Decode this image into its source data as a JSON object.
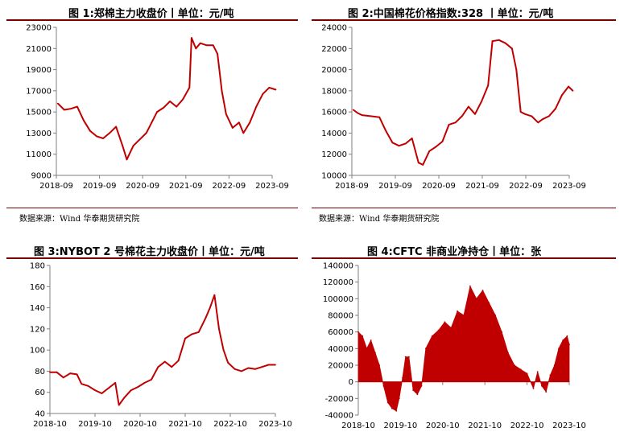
{
  "charts": [
    {
      "title": "图 1:郑棉主力收盘价丨单位：元/吨",
      "source": "数据来源：Wind  华泰期货研究院"
    },
    {
      "title": "图 2:中国棉花价格指数:328 丨单位：元/吨",
      "source": "数据来源：Wind  华泰期货研究院"
    },
    {
      "title": "图 3:NYBOT 2 号棉花主力收盘价丨单位：元/吨",
      "source": ""
    },
    {
      "title": "图 4:CFTC 非商业净持仓丨单位：张",
      "source": ""
    }
  ],
  "colors": {
    "series": "#c00000",
    "rule": "#7a0000"
  },
  "chart_data": [
    {
      "type": "line",
      "title": "图 1:郑棉主力收盘价丨单位：元/吨",
      "x_ticks": [
        "2018-09",
        "2019-09",
        "2020-09",
        "2021-09",
        "2022-09",
        "2023-09"
      ],
      "y_ticks": [
        9000,
        11000,
        13000,
        15000,
        17000,
        19000,
        21000,
        23000
      ],
      "ylim": [
        9000,
        23000
      ],
      "x": [
        2018.7,
        2018.85,
        2019.0,
        2019.15,
        2019.3,
        2019.45,
        2019.6,
        2019.75,
        2019.9,
        2020.05,
        2020.2,
        2020.3,
        2020.45,
        2020.6,
        2020.75,
        2020.9,
        2021.0,
        2021.15,
        2021.3,
        2021.45,
        2021.6,
        2021.75,
        2021.8,
        2021.9,
        2022.0,
        2022.15,
        2022.3,
        2022.4,
        2022.5,
        2022.6,
        2022.75,
        2022.9,
        2023.0,
        2023.15,
        2023.3,
        2023.45,
        2023.6,
        2023.75
      ],
      "values": [
        15800,
        15200,
        15300,
        15500,
        14200,
        13200,
        12700,
        12500,
        13000,
        13600,
        11800,
        10500,
        11800,
        12400,
        13000,
        14200,
        15000,
        15400,
        16000,
        15500,
        16200,
        17300,
        22000,
        21000,
        21500,
        21300,
        21300,
        20500,
        17000,
        14800,
        13500,
        14000,
        13000,
        14000,
        15500,
        16700,
        17300,
        17100
      ],
      "xlabel": "",
      "ylabel": "",
      "grid": false,
      "legend": "none"
    },
    {
      "type": "line",
      "title": "图 2:中国棉花价格指数:328 丨单位：元/吨",
      "x_ticks": [
        "2018-09",
        "2019-09",
        "2020-09",
        "2021-09",
        "2022-09",
        "2023-09"
      ],
      "y_ticks": [
        10000,
        12000,
        14000,
        16000,
        18000,
        20000,
        22000,
        24000
      ],
      "ylim": [
        10000,
        24000
      ],
      "x": [
        2018.7,
        2018.8,
        2018.9,
        2019.1,
        2019.3,
        2019.45,
        2019.6,
        2019.75,
        2019.9,
        2020.05,
        2020.2,
        2020.3,
        2020.45,
        2020.6,
        2020.75,
        2020.9,
        2021.05,
        2021.2,
        2021.35,
        2021.5,
        2021.65,
        2021.8,
        2021.9,
        2022.05,
        2022.2,
        2022.35,
        2022.45,
        2022.55,
        2022.65,
        2022.8,
        2022.95,
        2023.05,
        2023.2,
        2023.35,
        2023.5,
        2023.65,
        2023.75
      ],
      "values": [
        16200,
        15900,
        15700,
        15600,
        15500,
        14200,
        13100,
        12800,
        13000,
        13500,
        11200,
        11000,
        12300,
        12700,
        13200,
        14800,
        15000,
        15600,
        16500,
        15800,
        17000,
        18500,
        22700,
        22800,
        22500,
        22000,
        20000,
        16000,
        15800,
        15600,
        15000,
        15300,
        15600,
        16300,
        17600,
        18400,
        18000
      ],
      "xlabel": "",
      "ylabel": "",
      "grid": false,
      "legend": "none"
    },
    {
      "type": "line",
      "title": "图 3:NYBOT 2 号棉花主力收盘价丨单位：元/吨",
      "x_ticks": [
        "2018-10",
        "2019-10",
        "2020-10",
        "2021-10",
        "2022-10",
        "2023-10"
      ],
      "y_ticks": [
        40,
        60,
        80,
        100,
        120,
        140,
        160,
        180
      ],
      "ylim": [
        40,
        180
      ],
      "x": [
        2018.75,
        2018.9,
        2019.05,
        2019.2,
        2019.35,
        2019.45,
        2019.6,
        2019.75,
        2019.9,
        2020.05,
        2020.2,
        2020.28,
        2020.4,
        2020.55,
        2020.7,
        2020.85,
        2021.0,
        2021.15,
        2021.3,
        2021.45,
        2021.6,
        2021.75,
        2021.9,
        2022.05,
        2022.2,
        2022.3,
        2022.4,
        2022.5,
        2022.6,
        2022.7,
        2022.85,
        2023.0,
        2023.15,
        2023.3,
        2023.45,
        2023.6,
        2023.75
      ],
      "values": [
        79,
        79,
        74,
        78,
        77,
        68,
        66,
        62,
        59,
        64,
        69,
        48,
        55,
        62,
        65,
        69,
        72,
        84,
        89,
        84,
        90,
        111,
        115,
        117,
        130,
        140,
        152,
        120,
        100,
        88,
        82,
        80,
        83,
        82,
        84,
        86,
        86
      ],
      "xlabel": "",
      "ylabel": "",
      "grid": false,
      "legend": "none"
    },
    {
      "type": "area",
      "title": "图 4:CFTC 非商业净持仓丨单位：张",
      "x_ticks": [
        "2018-10",
        "2019-10",
        "2020-10",
        "2021-10",
        "2022-10",
        "2023-10"
      ],
      "y_ticks": [
        -40000,
        -20000,
        0,
        20000,
        40000,
        60000,
        80000,
        100000,
        120000,
        140000
      ],
      "ylim": [
        -40000,
        140000
      ],
      "x": [
        2018.75,
        2018.85,
        2018.95,
        2019.05,
        2019.15,
        2019.25,
        2019.35,
        2019.45,
        2019.55,
        2019.65,
        2019.72,
        2019.8,
        2019.87,
        2019.95,
        2020.05,
        2020.15,
        2020.25,
        2020.35,
        2020.5,
        2020.65,
        2020.8,
        2020.95,
        2021.1,
        2021.25,
        2021.4,
        2021.55,
        2021.7,
        2021.85,
        2022.0,
        2022.15,
        2022.3,
        2022.45,
        2022.6,
        2022.75,
        2022.9,
        2023.0,
        2023.1,
        2023.2,
        2023.3,
        2023.4,
        2023.5,
        2023.6,
        2023.7,
        2023.75
      ],
      "values": [
        60000,
        55000,
        40000,
        50000,
        35000,
        20000,
        -5000,
        -25000,
        -32000,
        -35000,
        -20000,
        5000,
        30000,
        30000,
        -10000,
        -15000,
        -5000,
        40000,
        55000,
        62000,
        72000,
        65000,
        85000,
        80000,
        115000,
        100000,
        110000,
        95000,
        80000,
        60000,
        35000,
        20000,
        15000,
        10000,
        -8000,
        12000,
        -5000,
        -12000,
        8000,
        20000,
        40000,
        50000,
        55000,
        45000
      ],
      "xlabel": "",
      "ylabel": "",
      "grid": false,
      "legend": "none"
    }
  ]
}
